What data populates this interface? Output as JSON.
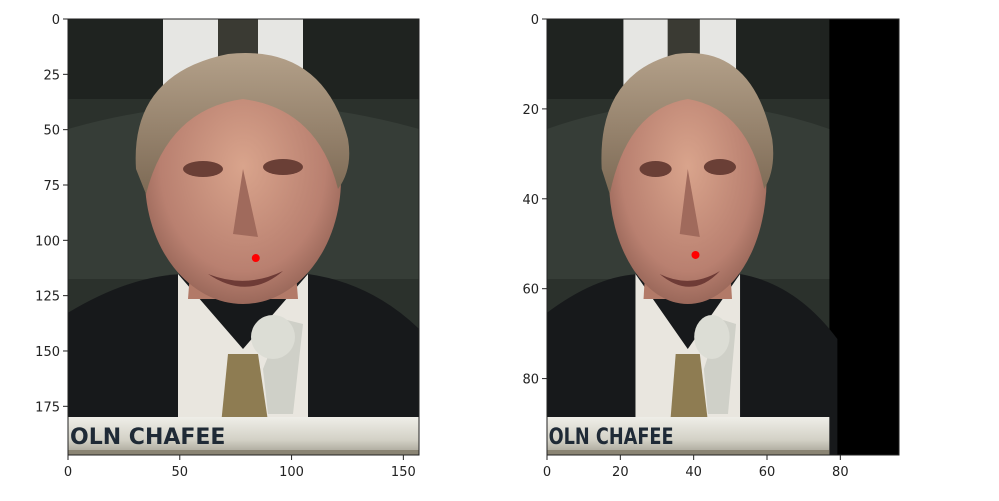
{
  "chart_data": [
    {
      "type": "image",
      "title": "",
      "xlabel": "",
      "ylabel": "",
      "xlim": [
        0,
        157
      ],
      "ylim": [
        197,
        0
      ],
      "x_ticks": [
        0,
        50,
        100,
        150
      ],
      "y_ticks": [
        0,
        25,
        50,
        75,
        100,
        125,
        150,
        175
      ],
      "image_content": "face-photo",
      "caption_text": "OLN CHAFEE",
      "points": [
        {
          "x": 84,
          "y": 108,
          "color": "#ff0000"
        }
      ]
    },
    {
      "type": "image",
      "title": "",
      "xlabel": "",
      "ylabel": "",
      "xlim": [
        0,
        96
      ],
      "ylim": [
        97,
        0
      ],
      "x_ticks": [
        0,
        20,
        40,
        60,
        80
      ],
      "y_ticks": [
        0,
        20,
        40,
        60,
        80
      ],
      "image_content": "face-photo",
      "image_extent_x": 77,
      "caption_text": "OLN CHAFEE",
      "points": [
        {
          "x": 40.5,
          "y": 52.5,
          "color": "#ff0000"
        }
      ]
    }
  ],
  "colors": {
    "background_dark": "#1f2320",
    "caption_band": "#d8d6cc",
    "marker": "#ff0000",
    "padding_black": "#000000"
  }
}
